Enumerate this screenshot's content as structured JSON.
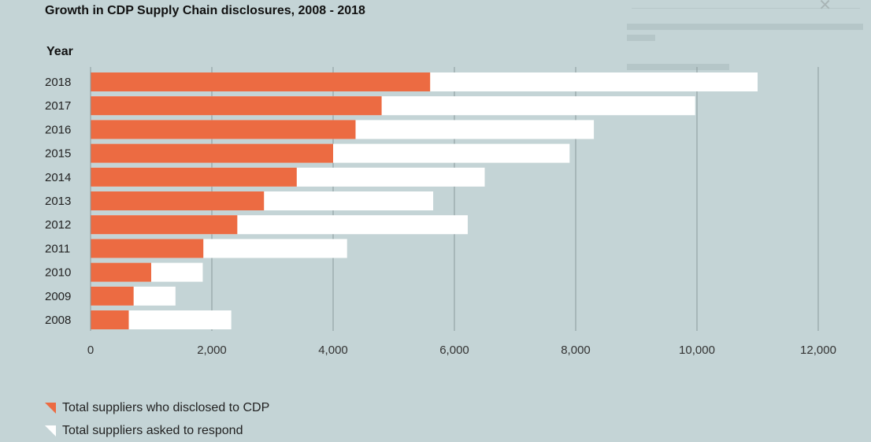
{
  "chart_data": {
    "type": "bar",
    "stacked_overlay": true,
    "title": "Growth in CDP Supply Chain disclosures, 2008 - 2018",
    "ylabel": "Year",
    "xlabel": "",
    "xlim": [
      0,
      12000
    ],
    "xticks": [
      "0",
      "2,000",
      "4,000",
      "6,000",
      "8,000",
      "10,000",
      "12,000"
    ],
    "xtick_values": [
      0,
      2000,
      4000,
      6000,
      8000,
      10000,
      12000
    ],
    "grid": true,
    "legend_position": "bottom-left",
    "categories": [
      "2018",
      "2017",
      "2016",
      "2015",
      "2014",
      "2013",
      "2012",
      "2011",
      "2010",
      "2009",
      "2008"
    ],
    "series": [
      {
        "name": "Total suppliers who disclosed to CDP",
        "color": "#ec6b42",
        "values": [
          5600,
          4800,
          4370,
          4000,
          3400,
          2860,
          2420,
          1860,
          1000,
          710,
          630
        ]
      },
      {
        "name": "Total suppliers asked to respond",
        "color": "#ffffff",
        "values": [
          11000,
          9970,
          8300,
          7900,
          6500,
          5650,
          6220,
          4230,
          1850,
          1400,
          2320
        ]
      }
    ]
  }
}
